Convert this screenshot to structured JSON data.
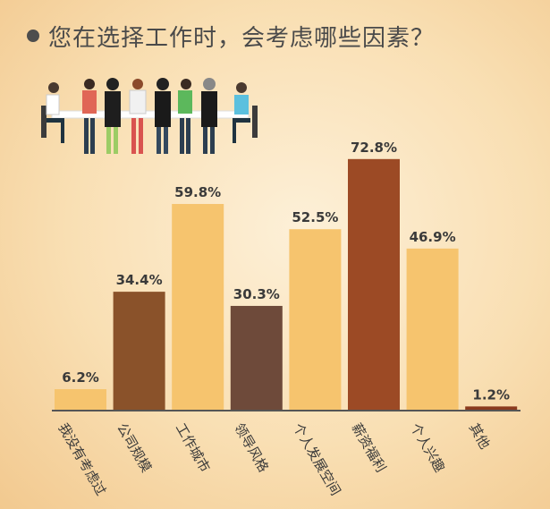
{
  "title": "您在选择工作时，会考虑哪些因素？",
  "chart_data": {
    "type": "bar",
    "categories": [
      "我没有考虑过",
      "公司规模",
      "工作城市",
      "领导风格",
      "个人发展空间",
      "薪资福利",
      "个人兴趣",
      "其他"
    ],
    "values": [
      6.2,
      34.4,
      59.8,
      30.3,
      52.5,
      72.8,
      46.9,
      1.2
    ],
    "value_labels": [
      "6.2%",
      "34.4%",
      "59.8%",
      "30.3%",
      "52.5%",
      "72.8%",
      "46.9%",
      "1.2%"
    ],
    "bar_colors": [
      "#f6c46e",
      "#8a522a",
      "#f6c46e",
      "#6e4a3a",
      "#f6c46e",
      "#9c4a25",
      "#f6c46e",
      "#8a3a1e"
    ],
    "ylim": [
      0,
      80
    ],
    "grid": false,
    "xlabel": "",
    "ylabel": ""
  },
  "colors": {
    "axis": "#555555",
    "label": "#3a3a3a"
  }
}
